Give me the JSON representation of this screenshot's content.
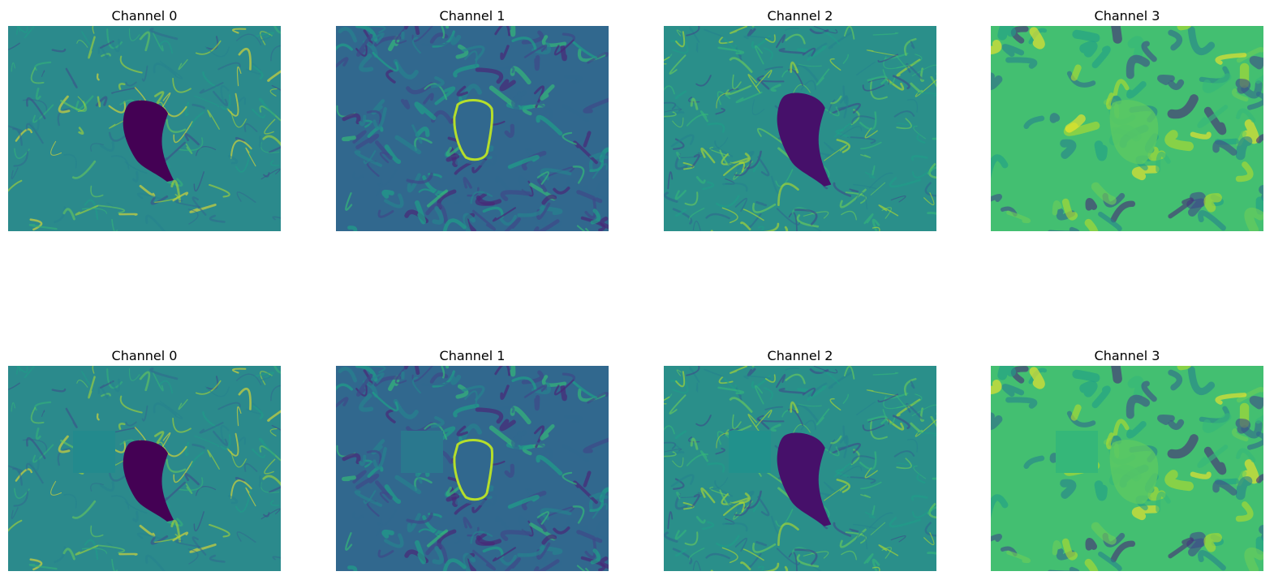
{
  "figure": {
    "rows": [
      {
        "panels": [
          {
            "title": "Channel 0",
            "style": "c0",
            "blob": "dark",
            "patch": null
          },
          {
            "title": "Channel 1",
            "style": "c1",
            "blob": "ring",
            "patch": null
          },
          {
            "title": "Channel 2",
            "style": "c2",
            "blob": "dark",
            "patch": null
          },
          {
            "title": "Channel 3",
            "style": "c3",
            "blob": "light",
            "patch": null
          }
        ]
      },
      {
        "panels": [
          {
            "title": "Channel 0",
            "style": "c0",
            "blob": "dark",
            "patch": "#238a8d"
          },
          {
            "title": "Channel 1",
            "style": "c1",
            "blob": "ring",
            "patch": "#2a788e"
          },
          {
            "title": "Channel 2",
            "style": "c2",
            "blob": "dark",
            "patch": "#21918c"
          },
          {
            "title": "Channel 3",
            "style": "c3",
            "blob": "light",
            "patch": "#35b779"
          }
        ]
      }
    ],
    "colormap": "viridis",
    "colors": {
      "blob_dark": "#440154",
      "blob_dark2": "#46106a",
      "base_c0": "#2b8a8c",
      "base_c1": "#31688e",
      "base_c2": "#2a8f8a",
      "base_c3": "#43bf71"
    }
  },
  "chart_data": {
    "type": "heatmap",
    "layout": "2x4 grid",
    "titles": [
      "Channel 0",
      "Channel 1",
      "Channel 2",
      "Channel 3",
      "Channel 0",
      "Channel 1",
      "Channel 2",
      "Channel 3"
    ],
    "colormap": "viridis",
    "axes": "off"
  }
}
